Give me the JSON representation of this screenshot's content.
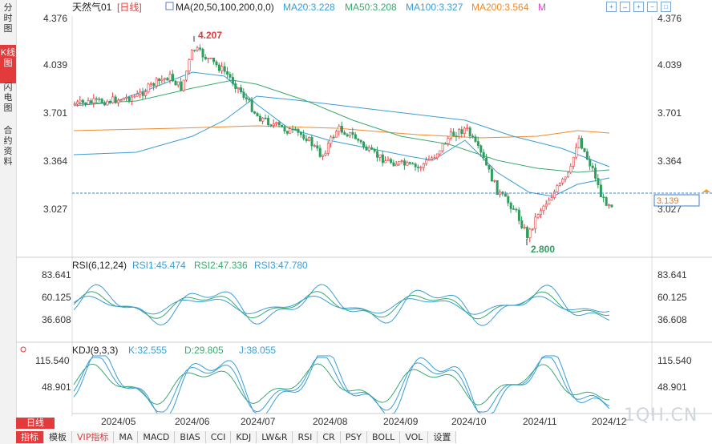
{
  "sidebar": {
    "tabs": [
      {
        "label": "分时图",
        "active": false
      },
      {
        "label": "K线图",
        "active": true
      },
      {
        "label": "闪电图",
        "active": false
      },
      {
        "label": "合约资料",
        "active": false
      }
    ]
  },
  "header": {
    "symbol": "天然气01",
    "period": "[日线]",
    "ma_label": "MA(20,50,100,200,0,0)",
    "ma20": "MA20:3.228",
    "ma50": "MA50:3.208",
    "ma100": "MA100:3.327",
    "ma200": "MA200:3.564",
    "m_flag": "M"
  },
  "price_axis": {
    "ticks": [
      "4.376",
      "4.039",
      "3.701",
      "3.364",
      "3.027"
    ],
    "current_price": "3.139",
    "high_label": "4.207",
    "low_label": "2.800"
  },
  "rsi": {
    "title": "RSI(6,12,24)",
    "rsi1": "RSI1:45.474",
    "rsi2": "RSI2:47.336",
    "rsi3": "RSI3:47.780",
    "ticks": [
      "83.641",
      "60.125",
      "36.608"
    ]
  },
  "kdj": {
    "title": "KDJ(9,3,3)",
    "k": "K:32.555",
    "d": "D:29.805",
    "j": "J:38.055",
    "ticks": [
      "115.540",
      "48.901"
    ]
  },
  "time_axis": [
    "2024/05",
    "2024/06",
    "2024/07",
    "2024/08",
    "2024/09",
    "2024/10",
    "2024/11",
    "2024/12"
  ],
  "period_label": "日线",
  "indicator_tabs": [
    {
      "label": "指标",
      "active": true
    },
    {
      "label": "模板"
    },
    {
      "label": "VIP指标",
      "vip": true
    },
    {
      "label": "MA"
    },
    {
      "label": "MACD"
    },
    {
      "label": "BIAS"
    },
    {
      "label": "CCI"
    },
    {
      "label": "KDJ"
    },
    {
      "label": "LW&R"
    },
    {
      "label": "RSI"
    },
    {
      "label": "CR"
    },
    {
      "label": "PSY"
    },
    {
      "label": "BOLL"
    },
    {
      "label": "VOL"
    },
    {
      "label": "设置"
    }
  ],
  "watermark": "1QH.CN",
  "colors": {
    "up": "#e33b3b",
    "down": "#2e9e5e",
    "ma20": "#2f9e7f",
    "ma50": "#3aaa70",
    "ma100": "#3a9ed6",
    "ma200": "#f08a2a",
    "accent": "#e33b3b"
  }
}
